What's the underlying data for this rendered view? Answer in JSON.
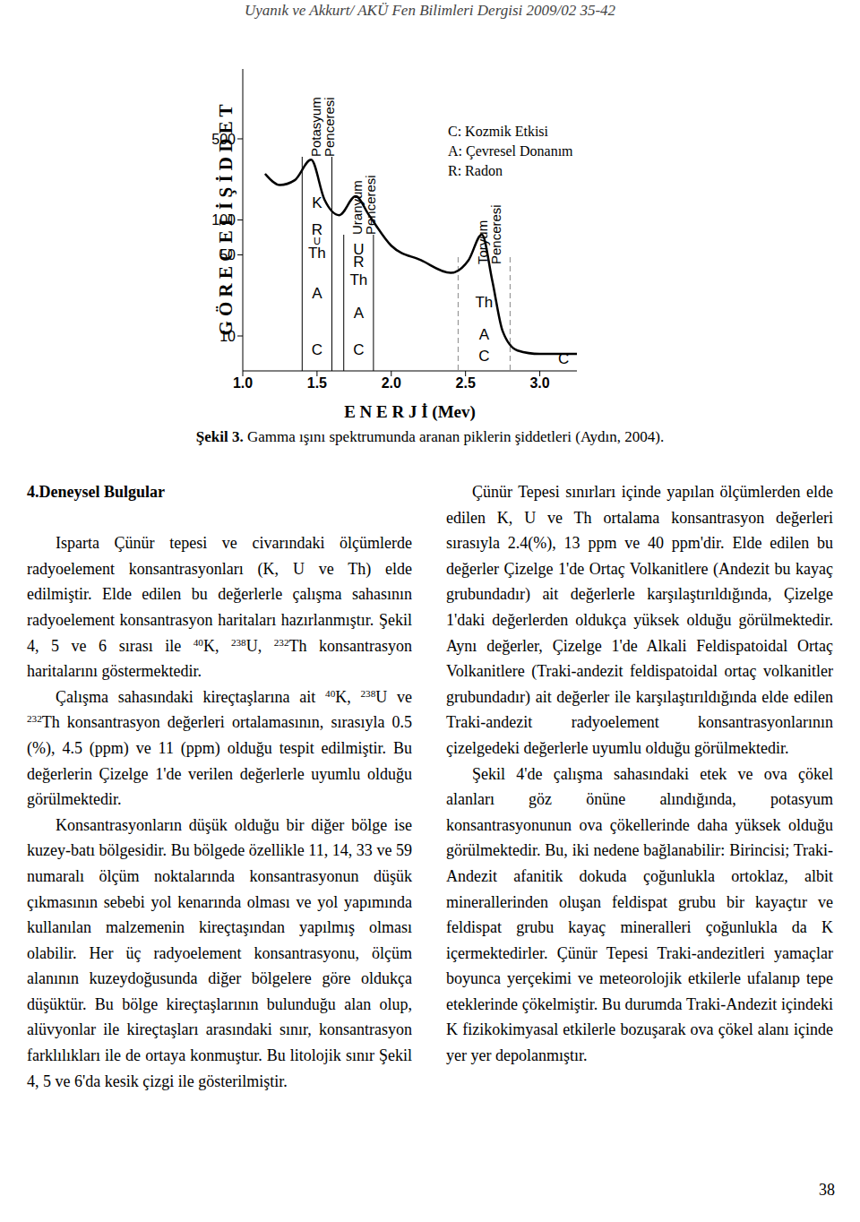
{
  "header": "Uyanık ve Akkurt/ AKÜ Fen Bilimleri Dergisi 2009/02 35-42",
  "chart_data": {
    "type": "line",
    "ylabel": "G Ö R E C E L İ Ş İ D D E T",
    "xlabel": "E N E R J İ (Mev)",
    "x": [
      1.15,
      1.25,
      1.35,
      1.46,
      1.55,
      1.65,
      1.76,
      1.85,
      2.0,
      2.2,
      2.4,
      2.52,
      2.61,
      2.68,
      2.75,
      2.85,
      3.0,
      3.25
    ],
    "values": [
      250,
      200,
      220,
      330,
      150,
      110,
      160,
      110,
      60,
      45,
      35,
      45,
      75,
      30,
      11,
      7.5,
      7,
      7
    ],
    "color": "#000000",
    "log": "y",
    "grid": false,
    "xlim": [
      1.0,
      3.25
    ],
    "ylim": [
      5,
      2000
    ],
    "xticks": [
      {
        "value": 1,
        "label": "1.0"
      },
      {
        "value": 1.5,
        "label": "1.5"
      },
      {
        "value": 2,
        "label": "2.0"
      },
      {
        "value": 2.5,
        "label": "2.5"
      },
      {
        "value": 3,
        "label": "3.0"
      }
    ],
    "yticks": [
      10,
      50,
      100,
      500
    ],
    "windows": [
      {
        "name": "Potasyum Penceresi",
        "range": [
          1.4,
          1.6
        ],
        "letters": [
          "K",
          "R",
          "U",
          "Th",
          "A",
          "C"
        ],
        "line_style": "solid"
      },
      {
        "name": "Uranyum Penceresi",
        "range": [
          1.68,
          1.88
        ],
        "letters": [
          "U",
          "R",
          "Th",
          "A",
          "C"
        ],
        "line_style": "solid"
      },
      {
        "name": "Toryum Penceresi",
        "range": [
          2.45,
          2.8
        ],
        "letters": [
          "Th",
          "A",
          "C"
        ],
        "line_style": "dashed"
      }
    ],
    "notes": [
      "C: Kozmik Etkisi",
      "A: Çevresel Donanım",
      "R: Radon"
    ],
    "annotations": [
      {
        "text": "C",
        "x": 3.16,
        "y": 6.4
      }
    ]
  },
  "caption": {
    "label": "Şekil 3.",
    "text": "Gamma ışını spektrumunda aranan piklerin şiddetleri (Aydın, 2004)."
  },
  "left_column": {
    "heading": "4.Deneysel Bulgular",
    "paragraphs": [
      [
        "Isparta Çünür tepesi ve civarındaki ölçümlerde radyoelement konsantrasyonları (K, U ve Th) elde edilmiştir. Elde edilen bu değerlerle çalışma sahasının radyoelement konsantrasyon haritaları hazırlanmıştır. Şekil 4, 5 ve 6 sırası ile ",
        {
          "sup": "40"
        },
        "K, ",
        {
          "sup": "238"
        },
        "U, ",
        {
          "sup": "232"
        },
        "Th konsantrasyon haritalarını göstermektedir."
      ],
      [
        "Çalışma sahasındaki kireçtaşlarına ait ",
        {
          "sup": "40"
        },
        "K, ",
        {
          "sup": "238"
        },
        "U ve ",
        {
          "sup": "232"
        },
        "Th konsantrasyon değerleri ortalamasının, sırasıyla 0.5 (%), 4.5 (ppm) ve 11 (ppm) olduğu tespit edilmiştir. Bu değerlerin Çizelge 1'de verilen değerlerle uyumlu olduğu görülmektedir."
      ],
      [
        "Konsantrasyonların düşük olduğu bir diğer bölge ise kuzey-batı bölgesidir. Bu bölgede özellikle 11, 14, 33 ve 59 numaralı ölçüm noktalarında konsantrasyonun düşük çıkmasının sebebi yol kenarında olması ve yol yapımında kullanılan malzemenin kireçtaşından yapılmış olması olabilir. Her üç radyoelement konsantrasyonu, ölçüm alanının kuzeydoğusunda diğer bölgelere göre oldukça düşüktür. Bu bölge kireçtaşlarının bulunduğu alan olup, alüvyonlar ile kireçtaşları arasındaki sınır, konsantrasyon farklılıkları ile de ortaya konmuştur. Bu litolojik sınır Şekil 4, 5 ve 6'da kesik çizgi ile gösterilmiştir."
      ]
    ]
  },
  "right_column": {
    "paragraphs": [
      [
        "Çünür Tepesi sınırları içinde yapılan ölçümlerden elde edilen K, U ve Th ortalama konsantrasyon değerleri sırasıyla 2.4(%), 13 ppm ve 40 ppm'dir. Elde edilen bu değerler Çizelge 1'de Ortaç Volkanitlere (Andezit bu kayaç grubundadır) ait değerlerle karşılaştırıldığında, Çizelge 1'daki değerlerden oldukça yüksek olduğu görülmektedir. Aynı değerler, Çizelge 1'de Alkali Feldispatoidal Ortaç Volkanitlere (Traki-andezit feldispatoidal ortaç volkanitler grubundadır) ait değerler ile karşılaştırıldığında elde edilen Traki-andezit radyoelement konsantrasyonlarının çizelgedeki değerlerle uyumlu olduğu görülmektedir."
      ],
      [
        "Şekil 4'de çalışma sahasındaki etek ve ova çökel alanları göz önüne alındığında, potasyum konsantrasyonunun ova çökellerinde daha yüksek olduğu görülmektedir. Bu, iki nedene bağlanabilir: Birincisi; Traki-Andezit afanitik dokuda çoğunlukla ortoklaz, albit minerallerinden oluşan feldispat grubu bir kayaçtır ve feldispat grubu kayaç mineralleri çoğunlukla da K içermektedirler. Çünür Tepesi Traki-andezitleri yamaçlar boyunca yerçekimi ve meteorolojik etkilerle ufalanıp tepe eteklerinde çökelmiştir. Bu durumda Traki-Andezit içindeki K fizikokimyasal etkilerle bozuşarak ova çökel alanı içinde yer yer depolanmıştır."
      ]
    ]
  },
  "page_number": "38"
}
